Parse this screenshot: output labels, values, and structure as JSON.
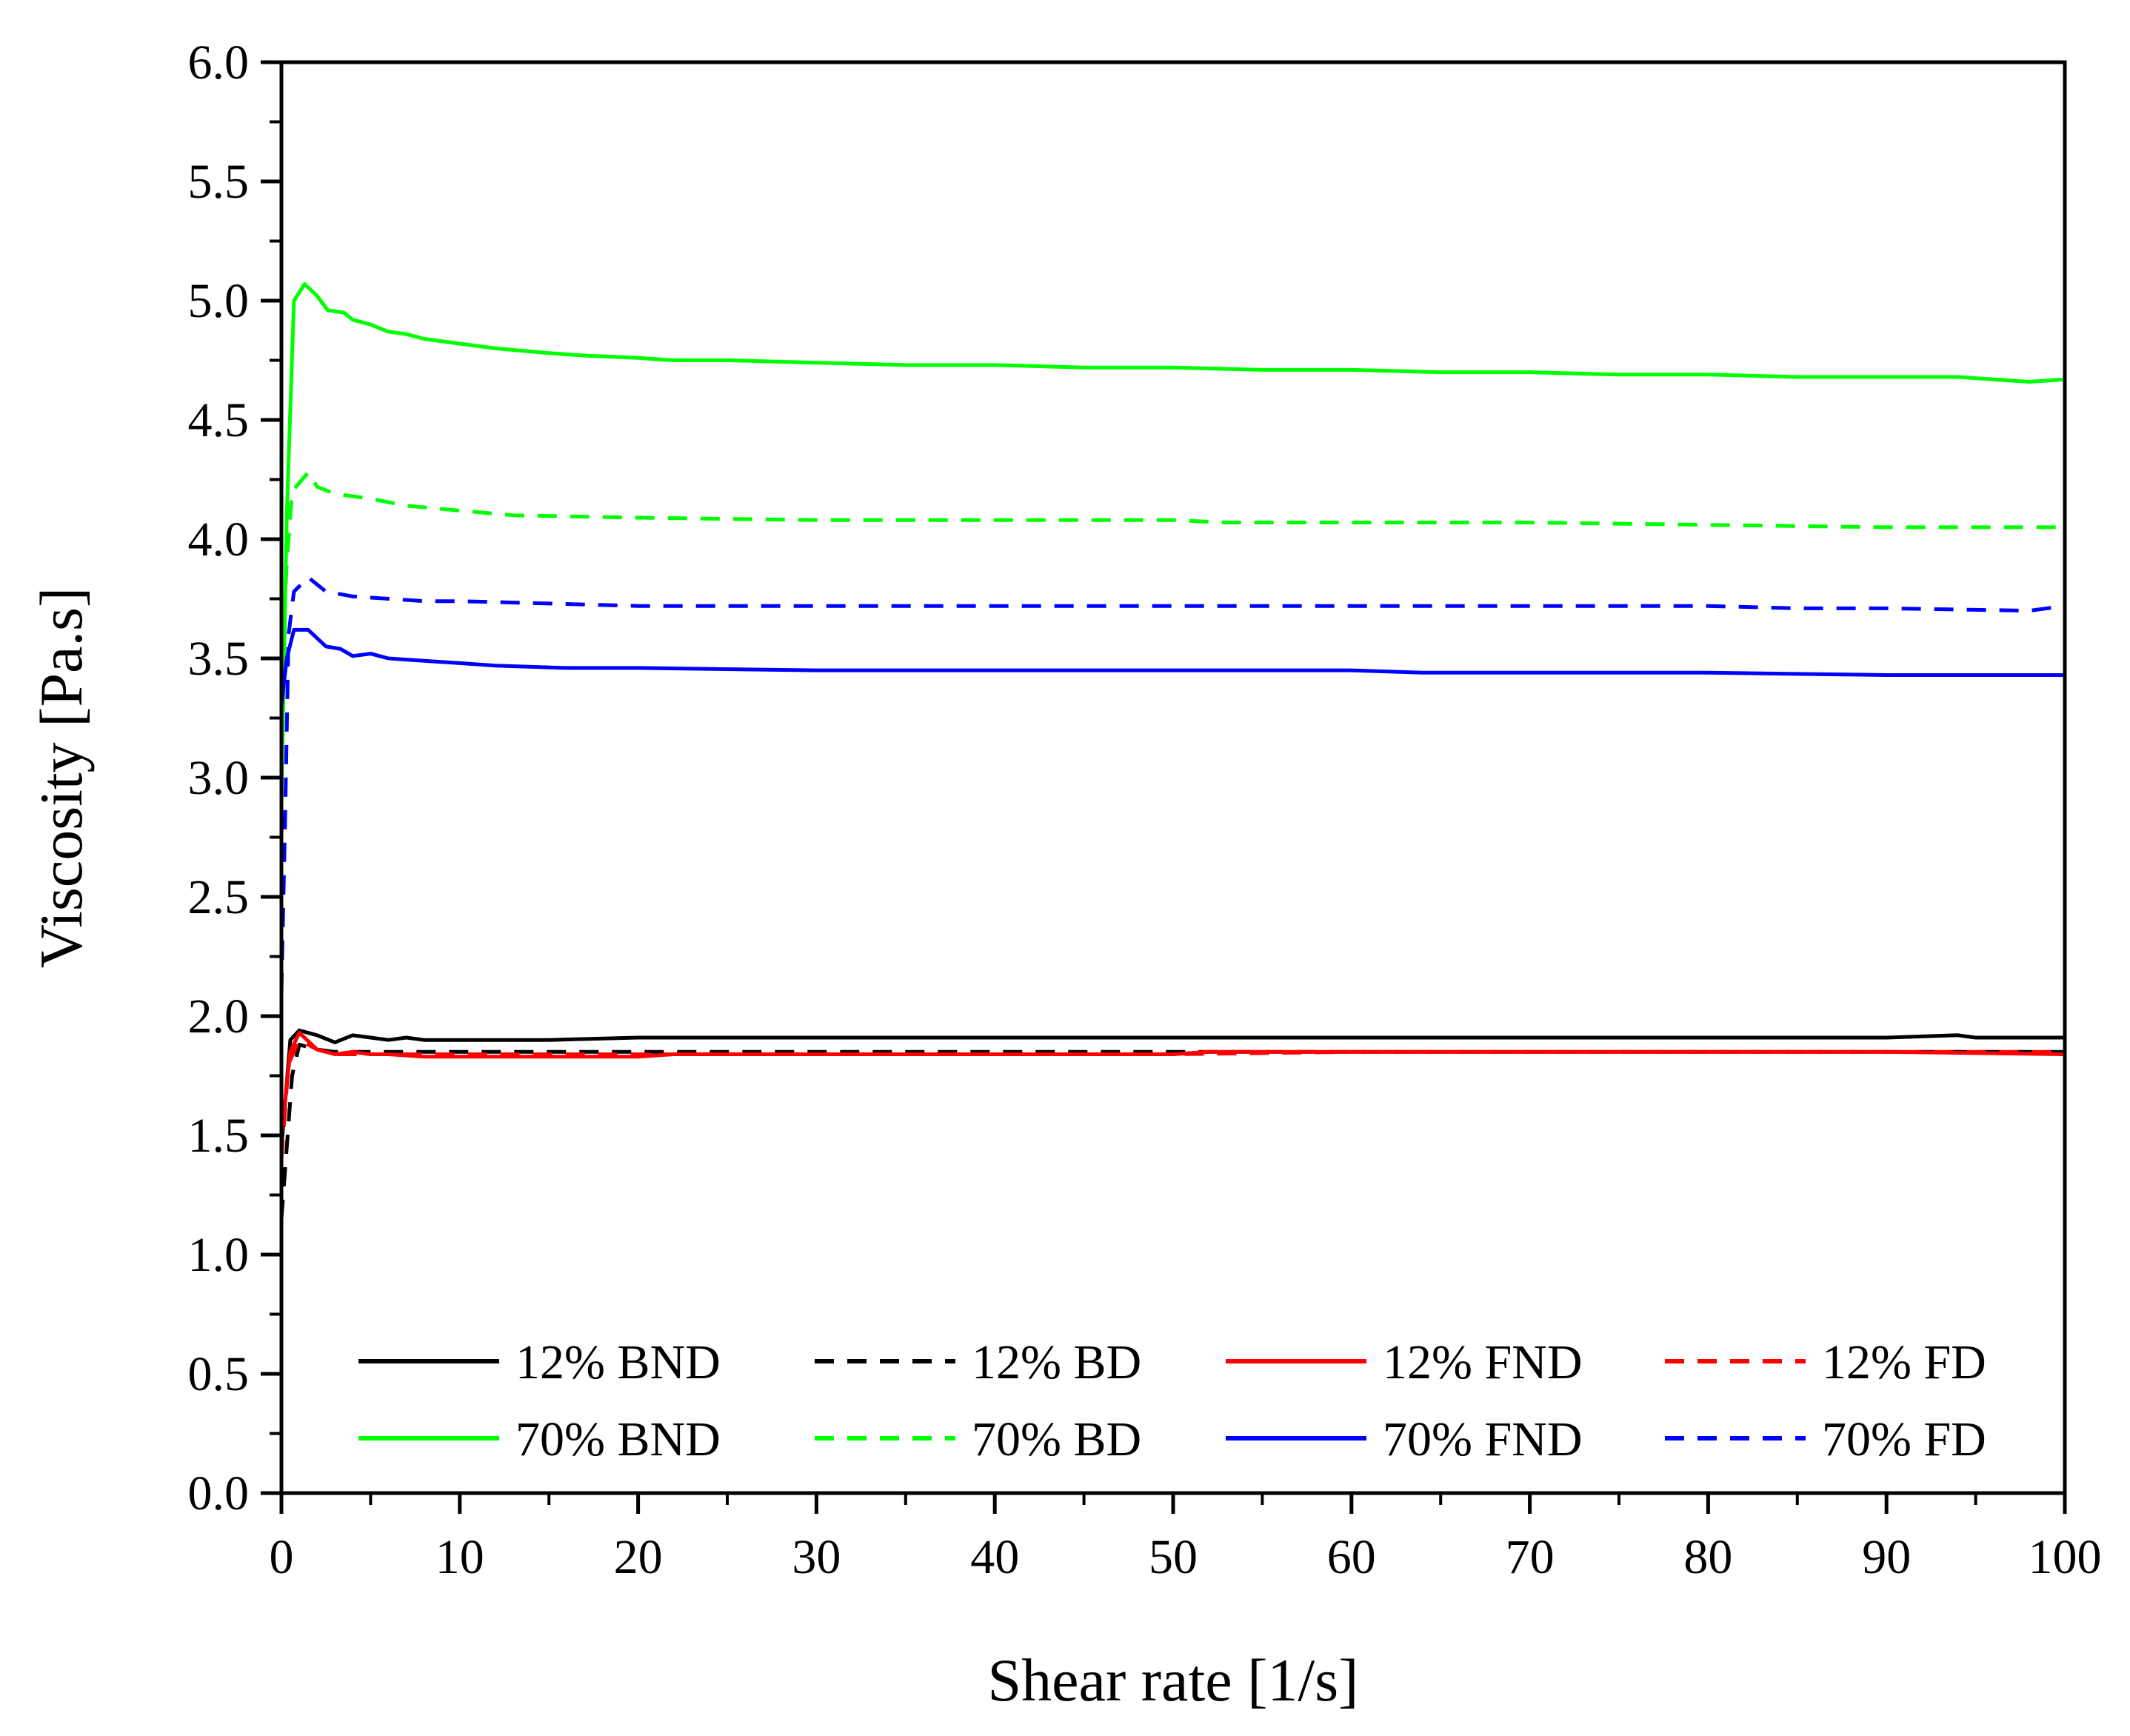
{
  "chart_data": {
    "type": "line",
    "title": "",
    "xlabel": "Shear rate [1/s]",
    "ylabel": "Viscosity [Pa.s]",
    "xlim": [
      0,
      100
    ],
    "ylim": [
      0.0,
      6.0
    ],
    "xticks": [
      0,
      10,
      20,
      30,
      40,
      50,
      60,
      70,
      80,
      90,
      100
    ],
    "xtick_labels": [
      "0",
      "10",
      "20",
      "30",
      "40",
      "50",
      "60",
      "70",
      "80",
      "90",
      "100"
    ],
    "yticks": [
      0.0,
      0.5,
      1.0,
      1.5,
      2.0,
      2.5,
      3.0,
      3.5,
      4.0,
      4.5,
      5.0,
      5.5,
      6.0
    ],
    "ytick_labels": [
      "0.0",
      "0.5",
      "1.0",
      "1.5",
      "2.0",
      "2.5",
      "3.0",
      "3.5",
      "4.0",
      "4.5",
      "5.0",
      "5.5",
      "6.0"
    ],
    "grid": false,
    "legend_position": "bottom, inside plot, two rows",
    "series": [
      {
        "name": "12% BND",
        "color": "#000000",
        "dash": "solid",
        "x": [
          0,
          0.5,
          1,
          2,
          3,
          4,
          5,
          6,
          7,
          8,
          10,
          15,
          20,
          30,
          40,
          50,
          60,
          70,
          80,
          90,
          94,
          95,
          100
        ],
        "y": [
          1.45,
          1.9,
          1.94,
          1.92,
          1.89,
          1.92,
          1.91,
          1.9,
          1.91,
          1.9,
          1.9,
          1.9,
          1.91,
          1.91,
          1.91,
          1.91,
          1.91,
          1.91,
          1.91,
          1.91,
          1.92,
          1.91,
          1.91
        ]
      },
      {
        "name": "12% BD",
        "color": "#000000",
        "dash": "dashed",
        "x": [
          0,
          0.3,
          0.6,
          1,
          2,
          3,
          5,
          10,
          20,
          30,
          40,
          50,
          60,
          70,
          80,
          90,
          100
        ],
        "y": [
          1.15,
          1.45,
          1.75,
          1.88,
          1.86,
          1.85,
          1.85,
          1.85,
          1.85,
          1.85,
          1.85,
          1.85,
          1.85,
          1.85,
          1.85,
          1.85,
          1.85
        ]
      },
      {
        "name": "12% FND",
        "color": "#ff0000",
        "dash": "solid",
        "x": [
          0,
          0.5,
          1,
          2,
          3,
          4,
          5,
          6,
          8,
          10,
          20,
          22,
          30,
          40,
          50,
          52,
          60,
          70,
          80,
          90,
          100
        ],
        "y": [
          1.5,
          1.85,
          1.93,
          1.86,
          1.84,
          1.85,
          1.84,
          1.84,
          1.83,
          1.83,
          1.83,
          1.84,
          1.84,
          1.84,
          1.84,
          1.85,
          1.85,
          1.85,
          1.85,
          1.85,
          1.84
        ]
      },
      {
        "name": "12% FD",
        "color": "#ff0000",
        "dash": "dashed",
        "x": [
          0,
          0.4,
          1,
          2,
          3,
          5,
          10,
          20,
          30,
          40,
          50,
          60,
          70,
          80,
          90,
          100
        ],
        "y": [
          1.4,
          1.8,
          1.9,
          1.86,
          1.84,
          1.84,
          1.84,
          1.84,
          1.84,
          1.84,
          1.84,
          1.85,
          1.85,
          1.85,
          1.85,
          1.85
        ]
      },
      {
        "name": "70% BND",
        "color": "#00ff00",
        "dash": "solid",
        "x": [
          0,
          0.3,
          0.7,
          1.3,
          2,
          2.6,
          3.5,
          4,
          5,
          6,
          7,
          8,
          10,
          12,
          15,
          17,
          20,
          22,
          25,
          30,
          35,
          40,
          45,
          50,
          55,
          60,
          65,
          70,
          75,
          80,
          85,
          90,
          94,
          96,
          98,
          100
        ],
        "y": [
          2.9,
          4.1,
          5.0,
          5.07,
          5.02,
          4.96,
          4.95,
          4.92,
          4.9,
          4.87,
          4.86,
          4.84,
          4.82,
          4.8,
          4.78,
          4.77,
          4.76,
          4.75,
          4.75,
          4.74,
          4.73,
          4.73,
          4.72,
          4.72,
          4.71,
          4.71,
          4.7,
          4.7,
          4.69,
          4.69,
          4.68,
          4.68,
          4.68,
          4.67,
          4.66,
          4.67
        ]
      },
      {
        "name": "70% BD",
        "color": "#00ff00",
        "dash": "dashed",
        "x": [
          0,
          0.3,
          0.6,
          1.5,
          2,
          3,
          5,
          7,
          10,
          13,
          20,
          30,
          40,
          50,
          53,
          60,
          70,
          80,
          90,
          100
        ],
        "y": [
          3.4,
          3.9,
          4.2,
          4.28,
          4.22,
          4.19,
          4.17,
          4.14,
          4.12,
          4.1,
          4.09,
          4.08,
          4.08,
          4.08,
          4.07,
          4.07,
          4.07,
          4.06,
          4.05,
          4.05
        ]
      },
      {
        "name": "70% FND",
        "color": "#0000ff",
        "dash": "solid",
        "x": [
          0,
          0.3,
          0.7,
          1.5,
          2.5,
          3.3,
          4,
          5,
          6,
          8,
          10,
          12,
          16,
          20,
          30,
          40,
          50,
          60,
          64,
          70,
          80,
          90,
          100
        ],
        "y": [
          3.3,
          3.5,
          3.62,
          3.62,
          3.55,
          3.54,
          3.51,
          3.52,
          3.5,
          3.49,
          3.48,
          3.47,
          3.46,
          3.46,
          3.45,
          3.45,
          3.45,
          3.45,
          3.44,
          3.44,
          3.44,
          3.43,
          3.43
        ]
      },
      {
        "name": "70% FD",
        "color": "#0000ff",
        "dash": "dashed",
        "x": [
          0,
          0.2,
          0.4,
          0.7,
          1.5,
          2.5,
          4,
          6,
          8,
          10,
          15,
          20,
          30,
          40,
          50,
          60,
          70,
          80,
          85,
          90,
          98,
          100
        ],
        "y": [
          2.1,
          2.8,
          3.6,
          3.78,
          3.84,
          3.78,
          3.76,
          3.75,
          3.74,
          3.74,
          3.73,
          3.72,
          3.72,
          3.72,
          3.72,
          3.72,
          3.72,
          3.72,
          3.71,
          3.71,
          3.7,
          3.72
        ]
      }
    ]
  }
}
